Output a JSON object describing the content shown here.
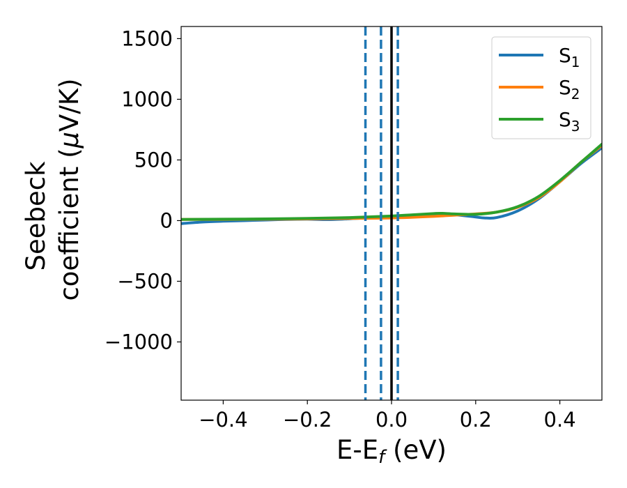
{
  "chart_data": {
    "type": "line",
    "title": "",
    "xlabel": "E-E",
    "xlabel_sub": "f",
    "xlabel_suffix": " (eV)",
    "ylabel_line1": "Seebeck",
    "ylabel_line2_prefix": "coefficient  (",
    "ylabel_line2_mu": "μ",
    "ylabel_line2_suffix": "V/K)",
    "xlim": [
      -0.5,
      0.5
    ],
    "ylim": [
      -1480,
      1600
    ],
    "xticks": [
      -0.4,
      -0.2,
      0.0,
      0.2,
      0.4
    ],
    "xtick_labels": [
      "−0.4",
      "−0.2",
      "0.0",
      "0.2",
      "0.4"
    ],
    "yticks": [
      -1000,
      -500,
      0,
      500,
      1000,
      1500
    ],
    "ytick_labels": [
      "−1000",
      "−500",
      "0",
      "500",
      "1000",
      "1500"
    ],
    "grid": false,
    "legend_position": "top-right",
    "series": [
      {
        "name": "S",
        "name_sub": "1",
        "color": "#1f77b4",
        "x": [
          -0.5,
          -0.45,
          -0.4,
          -0.35,
          -0.3,
          -0.25,
          -0.2,
          -0.15,
          -0.1,
          -0.05,
          0.0,
          0.05,
          0.1,
          0.15,
          0.2,
          0.22,
          0.25,
          0.3,
          0.35,
          0.4,
          0.45,
          0.5
        ],
        "y": [
          -25,
          -12,
          -5,
          0,
          5,
          10,
          12,
          8,
          15,
          25,
          35,
          40,
          50,
          48,
          30,
          22,
          25,
          80,
          180,
          320,
          470,
          600
        ]
      },
      {
        "name": "S",
        "name_sub": "2",
        "color": "#ff7f0e",
        "x": [
          -0.5,
          -0.4,
          -0.3,
          -0.2,
          -0.1,
          0.0,
          0.1,
          0.15,
          0.2,
          0.25,
          0.3,
          0.35,
          0.4,
          0.45,
          0.5
        ],
        "y": [
          10,
          10,
          12,
          14,
          18,
          22,
          35,
          45,
          55,
          70,
          110,
          190,
          320,
          480,
          620
        ]
      },
      {
        "name": "S",
        "name_sub": "3",
        "color": "#2ca02c",
        "x": [
          -0.5,
          -0.4,
          -0.3,
          -0.2,
          -0.1,
          0.0,
          0.05,
          0.1,
          0.12,
          0.15,
          0.2,
          0.25,
          0.3,
          0.35,
          0.4,
          0.45,
          0.5
        ],
        "y": [
          10,
          12,
          14,
          18,
          25,
          38,
          48,
          58,
          60,
          55,
          52,
          70,
          115,
          200,
          330,
          480,
          630
        ]
      }
    ],
    "vlines": [
      {
        "x": -0.062,
        "style": "dashed",
        "color": "#1f77b4"
      },
      {
        "x": -0.025,
        "style": "dashed",
        "color": "#1f77b4"
      },
      {
        "x": 0.015,
        "style": "dashed",
        "color": "#1f77b4"
      },
      {
        "x": 0.0,
        "style": "solid",
        "color": "#000000"
      }
    ]
  }
}
